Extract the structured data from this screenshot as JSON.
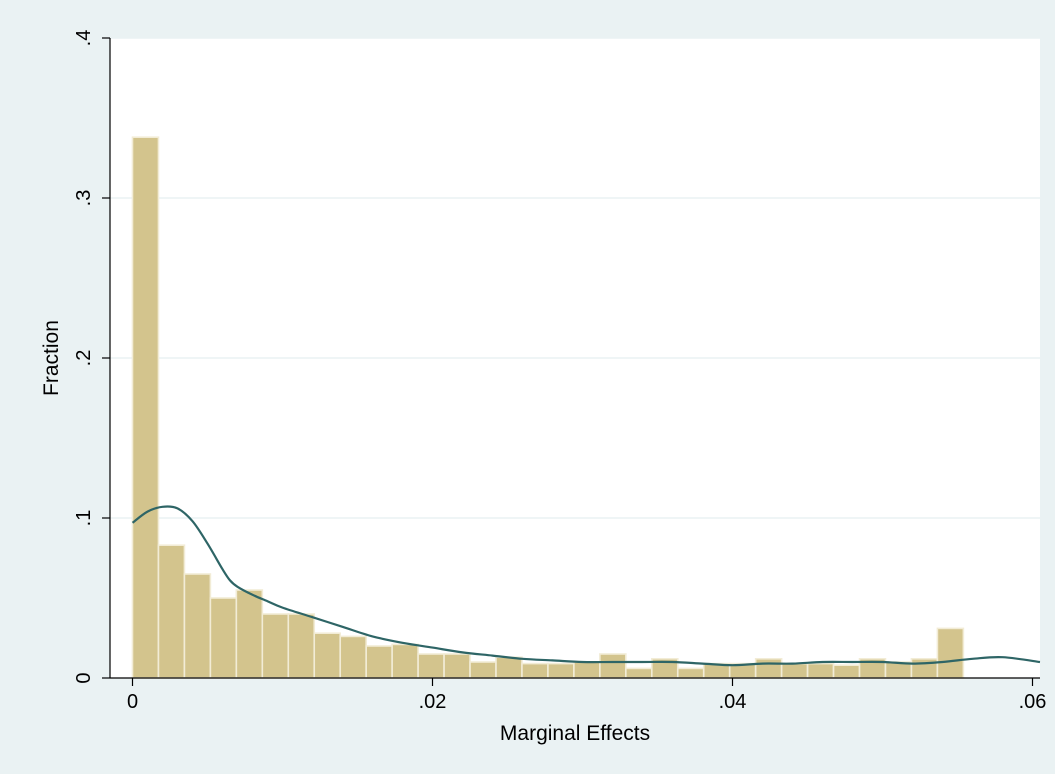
{
  "chart_data": {
    "type": "bar",
    "subtype": "histogram",
    "xlabel": "Marginal Effects",
    "ylabel": "Fraction",
    "xlim": [
      -0.0015,
      0.0605
    ],
    "ylim": [
      0,
      0.4
    ],
    "x_ticks": [
      {
        "value": 0,
        "label": "0"
      },
      {
        "value": 0.02,
        "label": ".02"
      },
      {
        "value": 0.04,
        "label": ".04"
      },
      {
        "value": 0.06,
        "label": ".06"
      }
    ],
    "y_ticks": [
      {
        "value": 0,
        "label": "0"
      },
      {
        "value": 0.1,
        "label": ".1"
      },
      {
        "value": 0.2,
        "label": ".2"
      },
      {
        "value": 0.3,
        "label": ".3"
      },
      {
        "value": 0.4,
        "label": ".4"
      }
    ],
    "grid": "horizontal",
    "bin_start": 0,
    "bin_width": 0.001731,
    "values": [
      0.338,
      0.083,
      0.065,
      0.05,
      0.055,
      0.04,
      0.04,
      0.028,
      0.026,
      0.02,
      0.021,
      0.015,
      0.015,
      0.01,
      0.013,
      0.009,
      0.009,
      0.01,
      0.015,
      0.006,
      0.012,
      0.006,
      0.009,
      0.009,
      0.012,
      0.009,
      0.009,
      0.008,
      0.012,
      0.01,
      0.012,
      0.031
    ],
    "density_curve": {
      "x": [
        0,
        0.001,
        0.002,
        0.003,
        0.004,
        0.005,
        0.006,
        0.0065,
        0.007,
        0.008,
        0.009,
        0.01,
        0.012,
        0.014,
        0.016,
        0.018,
        0.02,
        0.022,
        0.024,
        0.026,
        0.028,
        0.03,
        0.032,
        0.034,
        0.036,
        0.038,
        0.04,
        0.042,
        0.044,
        0.046,
        0.048,
        0.05,
        0.052,
        0.054,
        0.056,
        0.058,
        0.0605
      ],
      "y": [
        0.097,
        0.104,
        0.107,
        0.106,
        0.098,
        0.084,
        0.068,
        0.061,
        0.057,
        0.052,
        0.048,
        0.044,
        0.038,
        0.032,
        0.026,
        0.022,
        0.019,
        0.016,
        0.014,
        0.012,
        0.011,
        0.01,
        0.01,
        0.01,
        0.01,
        0.009,
        0.008,
        0.009,
        0.009,
        0.01,
        0.01,
        0.01,
        0.009,
        0.01,
        0.012,
        0.013,
        0.01
      ]
    },
    "colors": {
      "outer_background": "#eaf2f3",
      "plot_background": "#ffffff",
      "grid": "#eaf2f3",
      "bar_fill": "#d3c48d",
      "bar_edge": "#f2ecd6",
      "curve": "#2e6566",
      "axis": "#000000"
    }
  }
}
